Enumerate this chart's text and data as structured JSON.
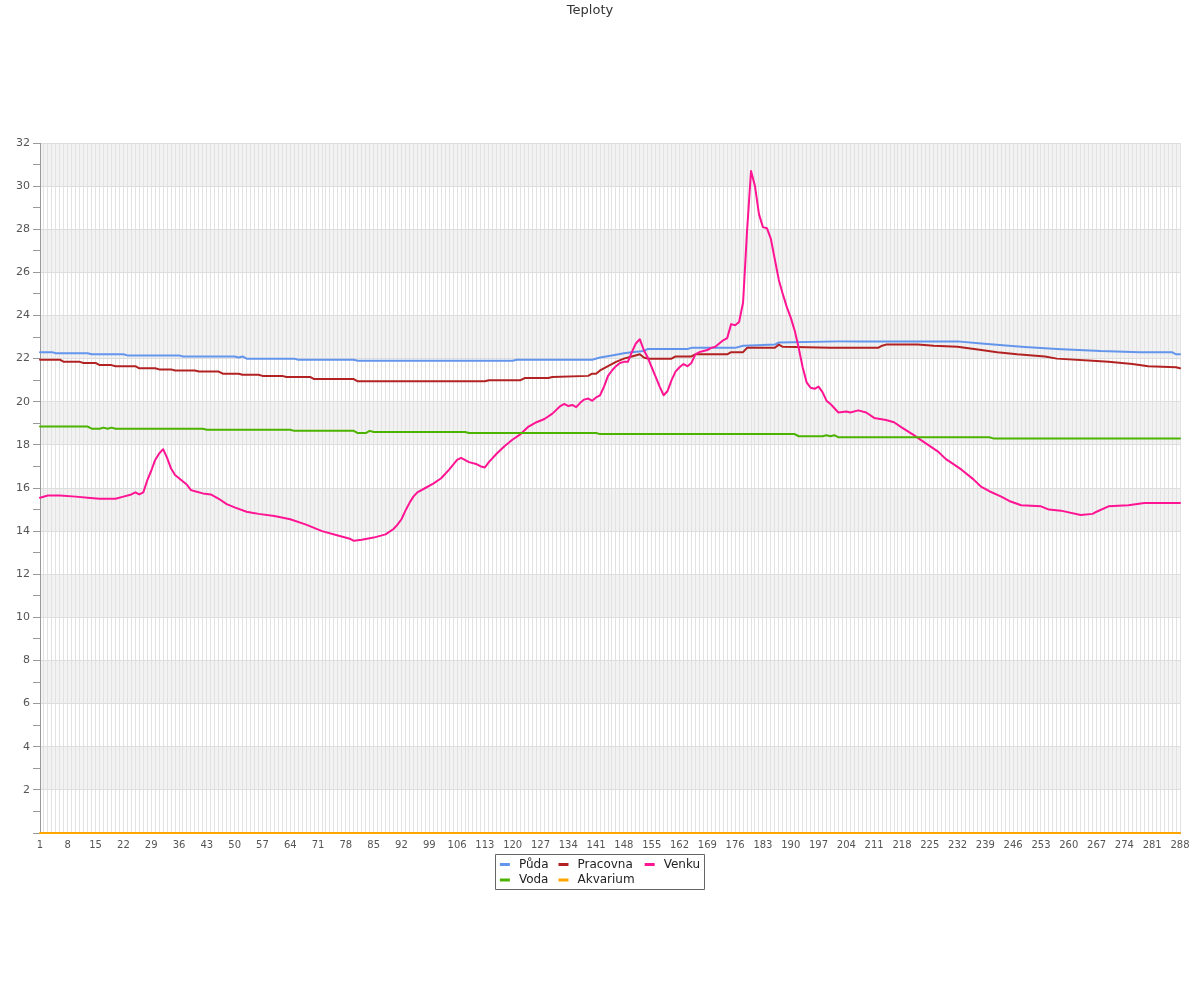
{
  "chart_data": {
    "type": "line",
    "title": "Teploty",
    "xlim": [
      1,
      288
    ],
    "xticks": [
      1,
      {
        "value": 2,
        "label": null
      },
      {
        "value": 3,
        "label": null
      },
      {
        "value": 4,
        "label": null
      },
      {
        "value": 5,
        "label": null
      },
      {
        "value": 6,
        "label": null
      },
      {
        "value": 7,
        "label": null
      },
      8,
      {
        "value": 9,
        "label": null
      },
      {
        "value": 10,
        "label": null
      },
      {
        "value": 11,
        "label": null
      },
      {
        "value": 12,
        "label": null
      },
      {
        "value": 13,
        "label": null
      },
      {
        "value": 14,
        "label": null
      },
      15,
      {
        "value": 16,
        "label": null
      },
      {
        "value": 17,
        "label": null
      },
      {
        "value": 18,
        "label": null
      },
      {
        "value": 19,
        "label": null
      },
      {
        "value": 20,
        "label": null
      },
      {
        "value": 21,
        "label": null
      },
      22,
      {
        "value": 23,
        "label": null
      },
      {
        "value": 24,
        "label": null
      },
      {
        "value": 25,
        "label": null
      },
      {
        "value": 26,
        "label": null
      },
      {
        "value": 27,
        "label": null
      },
      {
        "value": 28,
        "label": null
      },
      29,
      {
        "value": 30,
        "label": null
      },
      {
        "value": 31,
        "label": null
      },
      {
        "value": 32,
        "label": null
      },
      {
        "value": 33,
        "label": null
      },
      {
        "value": 34,
        "label": null
      },
      {
        "value": 35,
        "label": null
      },
      36,
      {
        "value": 37,
        "label": null
      },
      {
        "value": 38,
        "label": null
      },
      {
        "value": 39,
        "label": null
      },
      {
        "value": 40,
        "label": null
      },
      {
        "value": 41,
        "label": null
      },
      {
        "value": 42,
        "label": null
      },
      43,
      {
        "value": 44,
        "label": null
      },
      {
        "value": 45,
        "label": null
      },
      {
        "value": 46,
        "label": null
      },
      {
        "value": 47,
        "label": null
      },
      {
        "value": 48,
        "label": null
      },
      {
        "value": 49,
        "label": null
      },
      50,
      {
        "value": 51,
        "label": null
      },
      {
        "value": 52,
        "label": null
      },
      {
        "value": 53,
        "label": null
      },
      {
        "value": 54,
        "label": null
      },
      {
        "value": 55,
        "label": null
      },
      {
        "value": 56,
        "label": null
      },
      57,
      {
        "value": 58,
        "label": null
      },
      {
        "value": 59,
        "label": null
      },
      {
        "value": 60,
        "label": null
      },
      {
        "value": 61,
        "label": null
      },
      {
        "value": 62,
        "label": null
      },
      {
        "value": 63,
        "label": null
      },
      64,
      {
        "value": 65,
        "label": null
      },
      {
        "value": 66,
        "label": null
      },
      {
        "value": 67,
        "label": null
      },
      {
        "value": 68,
        "label": null
      },
      {
        "value": 69,
        "label": null
      },
      {
        "value": 70,
        "label": null
      },
      71,
      {
        "value": 72,
        "label": null
      },
      {
        "value": 73,
        "label": null
      },
      {
        "value": 74,
        "label": null
      },
      {
        "value": 75,
        "label": null
      },
      {
        "value": 76,
        "label": null
      },
      {
        "value": 77,
        "label": null
      },
      78,
      {
        "value": 79,
        "label": null
      },
      {
        "value": 80,
        "label": null
      },
      {
        "value": 81,
        "label": null
      },
      {
        "value": 82,
        "label": null
      },
      {
        "value": 83,
        "label": null
      },
      {
        "value": 84,
        "label": null
      },
      85,
      {
        "value": 86,
        "label": null
      },
      {
        "value": 87,
        "label": null
      },
      {
        "value": 88,
        "label": null
      },
      {
        "value": 89,
        "label": null
      },
      {
        "value": 90,
        "label": null
      },
      {
        "value": 91,
        "label": null
      },
      92,
      {
        "value": 93,
        "label": null
      },
      {
        "value": 94,
        "label": null
      },
      {
        "value": 95,
        "label": null
      },
      {
        "value": 96,
        "label": null
      },
      {
        "value": 97,
        "label": null
      },
      {
        "value": 98,
        "label": null
      },
      99,
      {
        "value": 100,
        "label": null
      },
      {
        "value": 101,
        "label": null
      },
      {
        "value": 102,
        "label": null
      },
      {
        "value": 103,
        "label": null
      },
      {
        "value": 104,
        "label": null
      },
      {
        "value": 105,
        "label": null
      },
      106,
      {
        "value": 107,
        "label": null
      },
      {
        "value": 108,
        "label": null
      },
      {
        "value": 109,
        "label": null
      },
      {
        "value": 110,
        "label": null
      },
      {
        "value": 111,
        "label": null
      },
      {
        "value": 112,
        "label": null
      },
      113,
      {
        "value": 114,
        "label": null
      },
      {
        "value": 115,
        "label": null
      },
      {
        "value": 116,
        "label": null
      },
      {
        "value": 117,
        "label": null
      },
      {
        "value": 118,
        "label": null
      },
      {
        "value": 119,
        "label": null
      },
      120,
      {
        "value": 121,
        "label": null
      },
      {
        "value": 122,
        "label": null
      },
      {
        "value": 123,
        "label": null
      },
      {
        "value": 124,
        "label": null
      },
      {
        "value": 125,
        "label": null
      },
      {
        "value": 126,
        "label": null
      },
      127,
      {
        "value": 128,
        "label": null
      },
      {
        "value": 129,
        "label": null
      },
      {
        "value": 130,
        "label": null
      },
      {
        "value": 131,
        "label": null
      },
      {
        "value": 132,
        "label": null
      },
      {
        "value": 133,
        "label": null
      },
      134,
      {
        "value": 135,
        "label": null
      },
      {
        "value": 136,
        "label": null
      },
      {
        "value": 137,
        "label": null
      },
      {
        "value": 138,
        "label": null
      },
      {
        "value": 139,
        "label": null
      },
      {
        "value": 140,
        "label": null
      },
      141,
      {
        "value": 142,
        "label": null
      },
      {
        "value": 143,
        "label": null
      },
      {
        "value": 144,
        "label": null
      },
      {
        "value": 145,
        "label": null
      },
      {
        "value": 146,
        "label": null
      },
      {
        "value": 147,
        "label": null
      },
      148,
      {
        "value": 149,
        "label": null
      },
      {
        "value": 150,
        "label": null
      },
      {
        "value": 151,
        "label": null
      },
      {
        "value": 152,
        "label": null
      },
      {
        "value": 153,
        "label": null
      },
      {
        "value": 154,
        "label": null
      },
      155,
      {
        "value": 156,
        "label": null
      },
      {
        "value": 157,
        "label": null
      },
      {
        "value": 158,
        "label": null
      },
      {
        "value": 159,
        "label": null
      },
      {
        "value": 160,
        "label": null
      },
      {
        "value": 161,
        "label": null
      },
      162,
      {
        "value": 163,
        "label": null
      },
      {
        "value": 164,
        "label": null
      },
      {
        "value": 165,
        "label": null
      },
      {
        "value": 166,
        "label": null
      },
      {
        "value": 167,
        "label": null
      },
      {
        "value": 168,
        "label": null
      },
      169,
      {
        "value": 170,
        "label": null
      },
      {
        "value": 171,
        "label": null
      },
      {
        "value": 172,
        "label": null
      },
      {
        "value": 173,
        "label": null
      },
      {
        "value": 174,
        "label": null
      },
      {
        "value": 175,
        "label": null
      },
      176,
      {
        "value": 177,
        "label": null
      },
      {
        "value": 178,
        "label": null
      },
      {
        "value": 179,
        "label": null
      },
      {
        "value": 180,
        "label": null
      },
      {
        "value": 181,
        "label": null
      },
      {
        "value": 182,
        "label": null
      },
      183,
      {
        "value": 184,
        "label": null
      },
      {
        "value": 185,
        "label": null
      },
      {
        "value": 186,
        "label": null
      },
      {
        "value": 187,
        "label": null
      },
      {
        "value": 188,
        "label": null
      },
      {
        "value": 189,
        "label": null
      },
      190,
      {
        "value": 191,
        "label": null
      },
      {
        "value": 192,
        "label": null
      },
      {
        "value": 193,
        "label": null
      },
      {
        "value": 194,
        "label": null
      },
      {
        "value": 195,
        "label": null
      },
      {
        "value": 196,
        "label": null
      },
      197,
      {
        "value": 198,
        "label": null
      },
      {
        "value": 199,
        "label": null
      },
      {
        "value": 200,
        "label": null
      },
      {
        "value": 201,
        "label": null
      },
      {
        "value": 202,
        "label": null
      },
      {
        "value": 203,
        "label": null
      },
      204,
      {
        "value": 205,
        "label": null
      },
      {
        "value": 206,
        "label": null
      },
      {
        "value": 207,
        "label": null
      },
      {
        "value": 208,
        "label": null
      },
      {
        "value": 209,
        "label": null
      },
      {
        "value": 210,
        "label": null
      },
      211,
      {
        "value": 212,
        "label": null
      },
      {
        "value": 213,
        "label": null
      },
      {
        "value": 214,
        "label": null
      },
      {
        "value": 215,
        "label": null
      },
      {
        "value": 216,
        "label": null
      },
      {
        "value": 217,
        "label": null
      },
      218,
      {
        "value": 219,
        "label": null
      },
      {
        "value": 220,
        "label": null
      },
      {
        "value": 221,
        "label": null
      },
      {
        "value": 222,
        "label": null
      },
      {
        "value": 223,
        "label": null
      },
      {
        "value": 224,
        "label": null
      },
      225,
      {
        "value": 226,
        "label": null
      },
      {
        "value": 227,
        "label": null
      },
      {
        "value": 228,
        "label": null
      },
      {
        "value": 229,
        "label": null
      },
      {
        "value": 230,
        "label": null
      },
      {
        "value": 231,
        "label": null
      },
      232,
      {
        "value": 233,
        "label": null
      },
      {
        "value": 234,
        "label": null
      },
      {
        "value": 235,
        "label": null
      },
      {
        "value": 236,
        "label": null
      },
      {
        "value": 237,
        "label": null
      },
      {
        "value": 238,
        "label": null
      },
      239,
      {
        "value": 240,
        "label": null
      },
      {
        "value": 241,
        "label": null
      },
      {
        "value": 242,
        "label": null
      },
      {
        "value": 243,
        "label": null
      },
      {
        "value": 244,
        "label": null
      },
      {
        "value": 245,
        "label": null
      },
      246,
      {
        "value": 247,
        "label": null
      },
      {
        "value": 248,
        "label": null
      },
      {
        "value": 249,
        "label": null
      },
      {
        "value": 250,
        "label": null
      },
      {
        "value": 251,
        "label": null
      },
      {
        "value": 252,
        "label": null
      },
      253,
      {
        "value": 254,
        "label": null
      },
      {
        "value": 255,
        "label": null
      },
      {
        "value": 256,
        "label": null
      },
      {
        "value": 257,
        "label": null
      },
      {
        "value": 258,
        "label": null
      },
      {
        "value": 259,
        "label": null
      },
      260,
      {
        "value": 261,
        "label": null
      },
      {
        "value": 262,
        "label": null
      },
      {
        "value": 263,
        "label": null
      },
      {
        "value": 264,
        "label": null
      },
      {
        "value": 265,
        "label": null
      },
      {
        "value": 266,
        "label": null
      },
      267,
      {
        "value": 268,
        "label": null
      },
      {
        "value": 269,
        "label": null
      },
      {
        "value": 270,
        "label": null
      },
      {
        "value": 271,
        "label": null
      },
      {
        "value": 272,
        "label": null
      },
      {
        "value": 273,
        "label": null
      },
      274,
      {
        "value": 275,
        "label": null
      },
      {
        "value": 276,
        "label": null
      },
      {
        "value": 277,
        "label": null
      },
      {
        "value": 278,
        "label": null
      },
      {
        "value": 279,
        "label": null
      },
      {
        "value": 280,
        "label": null
      },
      281,
      {
        "value": 282,
        "label": null
      },
      {
        "value": 283,
        "label": null
      },
      {
        "value": 284,
        "label": null
      },
      {
        "value": 285,
        "label": null
      },
      {
        "value": 286,
        "label": null
      },
      {
        "value": 287,
        "label": null
      },
      288
    ],
    "ylim": [
      0,
      32
    ],
    "yticks": [
      {
        "value": 0,
        "label": null
      },
      {
        "value": 1,
        "label": null
      },
      2,
      {
        "value": 3,
        "label": null
      },
      4,
      {
        "value": 5,
        "label": null
      },
      6,
      {
        "value": 7,
        "label": null
      },
      8,
      {
        "value": 9,
        "label": null
      },
      10,
      {
        "value": 11,
        "label": null
      },
      12,
      {
        "value": 13,
        "label": null
      },
      14,
      {
        "value": 15,
        "label": null
      },
      16,
      {
        "value": 17,
        "label": null
      },
      18,
      {
        "value": 19,
        "label": null
      },
      20,
      {
        "value": 21,
        "label": null
      },
      22,
      {
        "value": 23,
        "label": null
      },
      24,
      {
        "value": 25,
        "label": null
      },
      26,
      {
        "value": 27,
        "label": null
      },
      28,
      {
        "value": 29,
        "label": null
      },
      30,
      {
        "value": 31,
        "label": null
      },
      32
    ],
    "grid": true,
    "legend": "bottom",
    "marker": "none",
    "line_style": "solid",
    "series": [
      {
        "name": "Půda",
        "color": "#6495ed",
        "x": [
          1,
          4,
          5,
          13,
          14,
          22,
          23,
          36,
          37,
          50,
          51,
          52,
          53,
          65,
          66,
          80,
          81,
          120,
          121,
          140,
          142,
          145,
          148,
          150,
          153,
          154,
          164,
          165,
          176,
          178,
          186,
          187,
          202,
          208,
          232,
          238,
          248,
          257,
          268,
          278,
          286,
          287,
          288
        ],
        "values": [
          22.3,
          22.3,
          22.25,
          22.25,
          22.2,
          22.2,
          22.15,
          22.15,
          22.1,
          22.1,
          22.05,
          22.1,
          22.0,
          22.0,
          21.95,
          21.95,
          21.9,
          21.9,
          21.95,
          21.95,
          22.05,
          22.15,
          22.25,
          22.3,
          22.35,
          22.45,
          22.45,
          22.5,
          22.5,
          22.6,
          22.65,
          22.75,
          22.8,
          22.8,
          22.8,
          22.7,
          22.55,
          22.45,
          22.35,
          22.3,
          22.3,
          22.2,
          22.2
        ]
      },
      {
        "name": "Pracovna",
        "color": "#b22222",
        "x": [
          1,
          6,
          7,
          11,
          12,
          15,
          16,
          19,
          20,
          25,
          26,
          30,
          31,
          34,
          35,
          40,
          41,
          46,
          47,
          51,
          52,
          56,
          57,
          62,
          63,
          69,
          70,
          80,
          81,
          113,
          114,
          122,
          123,
          129,
          130,
          139,
          140,
          141,
          142,
          144,
          146,
          148,
          150,
          152,
          153,
          154,
          160,
          161,
          165,
          166,
          174,
          175,
          178,
          179,
          186,
          187,
          188,
          200,
          212,
          213,
          214,
          222,
          226,
          232,
          238,
          242,
          247,
          254,
          257,
          266,
          270,
          276,
          280,
          287,
          288
        ],
        "values": [
          21.95,
          21.95,
          21.85,
          21.85,
          21.8,
          21.8,
          21.7,
          21.7,
          21.65,
          21.65,
          21.55,
          21.55,
          21.5,
          21.5,
          21.45,
          21.45,
          21.4,
          21.4,
          21.3,
          21.3,
          21.25,
          21.25,
          21.2,
          21.2,
          21.15,
          21.15,
          21.05,
          21.05,
          20.95,
          20.95,
          21.0,
          21.0,
          21.1,
          21.1,
          21.15,
          21.2,
          21.3,
          21.3,
          21.45,
          21.65,
          21.85,
          22.0,
          22.1,
          22.2,
          22.05,
          22.0,
          22.0,
          22.1,
          22.1,
          22.2,
          22.2,
          22.3,
          22.3,
          22.5,
          22.5,
          22.65,
          22.55,
          22.5,
          22.5,
          22.6,
          22.65,
          22.65,
          22.6,
          22.55,
          22.4,
          22.3,
          22.2,
          22.1,
          22.0,
          21.9,
          21.85,
          21.75,
          21.65,
          21.6,
          21.55
        ]
      },
      {
        "name": "Venku",
        "color": "#ff1493",
        "x": [
          1,
          3,
          6,
          10,
          13,
          16,
          20,
          22,
          24,
          25,
          26,
          27,
          28,
          29,
          30,
          31,
          32,
          33,
          34,
          35,
          36,
          37,
          38,
          39,
          40,
          42,
          44,
          46,
          48,
          50,
          53,
          56,
          60,
          64,
          68,
          72,
          76,
          79,
          80,
          82,
          85,
          88,
          90,
          91,
          92,
          93,
          94,
          95,
          96,
          98,
          100,
          102,
          104,
          106,
          107,
          109,
          111,
          112,
          113,
          114,
          116,
          118,
          120,
          122,
          124,
          126,
          128,
          130,
          132,
          133,
          134,
          135,
          136,
          137,
          138,
          139,
          140,
          141,
          142,
          143,
          144,
          145,
          146,
          147,
          148,
          149,
          150,
          151,
          152,
          153,
          154,
          155,
          156,
          157,
          158,
          159,
          160,
          161,
          162,
          163,
          164,
          165,
          166,
          167,
          168,
          169,
          170,
          171,
          172,
          173,
          174,
          175,
          176,
          177,
          178,
          179,
          180,
          181,
          182,
          183,
          184,
          185,
          186,
          187,
          188,
          189,
          190,
          191,
          192,
          193,
          194,
          195,
          196,
          197,
          198,
          199,
          200,
          201,
          202,
          204,
          205,
          207,
          209,
          211,
          214,
          216,
          218,
          221,
          223,
          227,
          229,
          233,
          236,
          238,
          240,
          243,
          245,
          248,
          253,
          255,
          258,
          263,
          266,
          267,
          270,
          275,
          279,
          288
        ],
        "values": [
          15.55,
          15.65,
          15.65,
          15.6,
          15.55,
          15.5,
          15.5,
          15.6,
          15.7,
          15.8,
          15.7,
          15.8,
          16.35,
          16.8,
          17.3,
          17.6,
          17.8,
          17.4,
          16.9,
          16.6,
          16.45,
          16.3,
          16.15,
          15.9,
          15.85,
          15.75,
          15.7,
          15.5,
          15.25,
          15.1,
          14.9,
          14.8,
          14.7,
          14.55,
          14.3,
          14.0,
          13.8,
          13.65,
          13.55,
          13.6,
          13.7,
          13.85,
          14.1,
          14.3,
          14.55,
          14.95,
          15.3,
          15.6,
          15.8,
          16.0,
          16.2,
          16.45,
          16.85,
          17.3,
          17.4,
          17.2,
          17.1,
          17.0,
          16.95,
          17.2,
          17.6,
          17.95,
          18.25,
          18.5,
          18.85,
          19.05,
          19.2,
          19.45,
          19.8,
          19.9,
          19.8,
          19.85,
          19.75,
          19.95,
          20.1,
          20.15,
          20.05,
          20.2,
          20.3,
          20.7,
          21.2,
          21.45,
          21.65,
          21.8,
          21.85,
          21.85,
          22.3,
          22.7,
          22.9,
          22.4,
          22.05,
          21.6,
          21.15,
          20.7,
          20.3,
          20.5,
          21.0,
          21.4,
          21.6,
          21.75,
          21.65,
          21.8,
          22.2,
          22.3,
          22.35,
          22.4,
          22.5,
          22.55,
          22.7,
          22.85,
          22.95,
          23.6,
          23.55,
          23.7,
          24.6,
          27.9,
          30.7,
          30.0,
          28.7,
          28.1,
          28.05,
          27.55,
          26.6,
          25.65,
          25.0,
          24.4,
          23.9,
          23.3,
          22.5,
          21.6,
          20.9,
          20.65,
          20.6,
          20.7,
          20.45,
          20.05,
          19.9,
          19.7,
          19.5,
          19.55,
          19.5,
          19.6,
          19.5,
          19.25,
          19.15,
          19.05,
          18.8,
          18.45,
          18.2,
          17.7,
          17.35,
          16.85,
          16.4,
          16.05,
          15.85,
          15.6,
          15.4,
          15.2,
          15.15,
          15.0,
          14.95,
          14.75,
          14.8,
          14.9,
          15.15,
          15.2,
          15.3,
          15.3
        ]
      },
      {
        "name": "Voda",
        "color": "#4cb300",
        "x": [
          1,
          13,
          14,
          16,
          17,
          18,
          19,
          20,
          42,
          43,
          64,
          65,
          80,
          81,
          83,
          84,
          85,
          108,
          109,
          141,
          142,
          191,
          192,
          198,
          199,
          200,
          201,
          202,
          240,
          241,
          288
        ],
        "values": [
          18.85,
          18.85,
          18.75,
          18.75,
          18.8,
          18.75,
          18.8,
          18.75,
          18.75,
          18.7,
          18.7,
          18.65,
          18.65,
          18.55,
          18.55,
          18.65,
          18.6,
          18.6,
          18.55,
          18.55,
          18.5,
          18.5,
          18.4,
          18.4,
          18.45,
          18.4,
          18.45,
          18.35,
          18.35,
          18.3,
          18.3
        ]
      },
      {
        "name": "Akvarium",
        "color": "#ffa500",
        "x": [
          1,
          288
        ],
        "values": [
          0,
          0
        ]
      }
    ]
  }
}
